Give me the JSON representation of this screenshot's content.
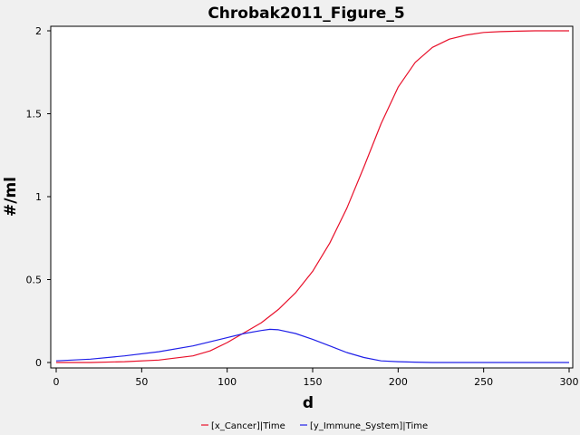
{
  "chart_data": {
    "type": "line",
    "title": "Chrobak2011_Figure_5",
    "xlabel": "d",
    "ylabel": "#/ml",
    "xlim": [
      0,
      300
    ],
    "ylim": [
      0,
      2
    ],
    "xticks": [
      0,
      50,
      100,
      150,
      200,
      250,
      300
    ],
    "xtick_labels": [
      "0",
      "50",
      "100",
      "150",
      "200",
      "250",
      "300"
    ],
    "yticks": [
      0,
      0.5,
      1,
      1.5,
      2
    ],
    "ytick_labels": [
      "0",
      "0.5",
      "1",
      "1.5",
      "2"
    ],
    "grid": false,
    "legend_position": "bottom",
    "series": [
      {
        "name": "[x_Cancer]|Time",
        "color": "#e8102a",
        "x": [
          0,
          20,
          40,
          60,
          80,
          90,
          100,
          110,
          120,
          130,
          140,
          150,
          160,
          170,
          180,
          190,
          200,
          210,
          220,
          230,
          240,
          250,
          260,
          270,
          280,
          290,
          300
        ],
        "y": [
          0.0,
          0.0,
          0.005,
          0.015,
          0.04,
          0.07,
          0.12,
          0.18,
          0.24,
          0.32,
          0.42,
          0.55,
          0.72,
          0.93,
          1.18,
          1.44,
          1.66,
          1.81,
          1.9,
          1.95,
          1.975,
          1.99,
          1.995,
          1.998,
          2.0,
          2.0,
          2.0
        ]
      },
      {
        "name": "[y_Immune_System]|Time",
        "color": "#2020e8",
        "x": [
          0,
          20,
          40,
          60,
          80,
          100,
          110,
          120,
          125,
          130,
          140,
          150,
          160,
          170,
          180,
          190,
          200,
          210,
          220,
          240,
          260,
          280,
          300
        ],
        "y": [
          0.01,
          0.02,
          0.04,
          0.065,
          0.1,
          0.15,
          0.175,
          0.193,
          0.2,
          0.197,
          0.175,
          0.14,
          0.1,
          0.06,
          0.03,
          0.01,
          0.005,
          0.002,
          0.0,
          0.0,
          0.0,
          0.0,
          0.0
        ]
      }
    ]
  }
}
